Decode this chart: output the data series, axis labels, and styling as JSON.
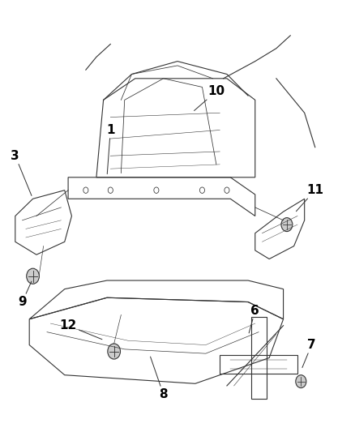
{
  "bg_color": "#ffffff",
  "fig_width": 4.38,
  "fig_height": 5.33,
  "dpi": 100,
  "label_fontsize": 11,
  "label_color": "#000000",
  "line_color": "#333333",
  "line_width": 0.8
}
